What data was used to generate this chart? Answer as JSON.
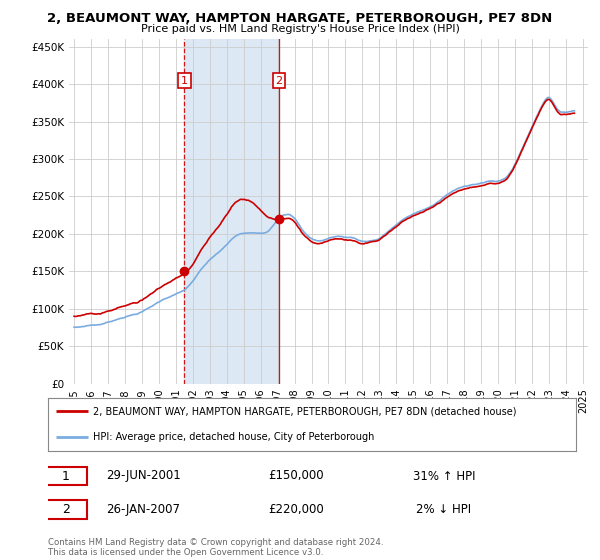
{
  "title1": "2, BEAUMONT WAY, HAMPTON HARGATE, PETERBOROUGH, PE7 8DN",
  "title2": "Price paid vs. HM Land Registry's House Price Index (HPI)",
  "legend_line1": "2, BEAUMONT WAY, HAMPTON HARGATE, PETERBOROUGH, PE7 8DN (detached house)",
  "legend_line2": "HPI: Average price, detached house, City of Peterborough",
  "transaction1_date": "29-JUN-2001",
  "transaction1_price": "£150,000",
  "transaction1_hpi": "31% ↑ HPI",
  "transaction2_date": "26-JAN-2007",
  "transaction2_price": "£220,000",
  "transaction2_hpi": "2% ↓ HPI",
  "footer": "Contains HM Land Registry data © Crown copyright and database right 2024.\nThis data is licensed under the Open Government Licence v3.0.",
  "hpi_color": "#7aace0",
  "price_color": "#cc0000",
  "vline1_color": "#cc0000",
  "vline2_color": "#cc0000",
  "span_color": "#dce9f5",
  "background_color": "#ffffff",
  "grid_color": "#cccccc",
  "ylim": [
    0,
    460000
  ],
  "yticks": [
    0,
    50000,
    100000,
    150000,
    200000,
    250000,
    300000,
    350000,
    400000,
    450000
  ],
  "xlim_start": 1994.7,
  "xlim_end": 2025.3,
  "t1_x": 2001.5,
  "t1_y": 150000,
  "t2_x": 2007.08,
  "t2_y": 220000
}
